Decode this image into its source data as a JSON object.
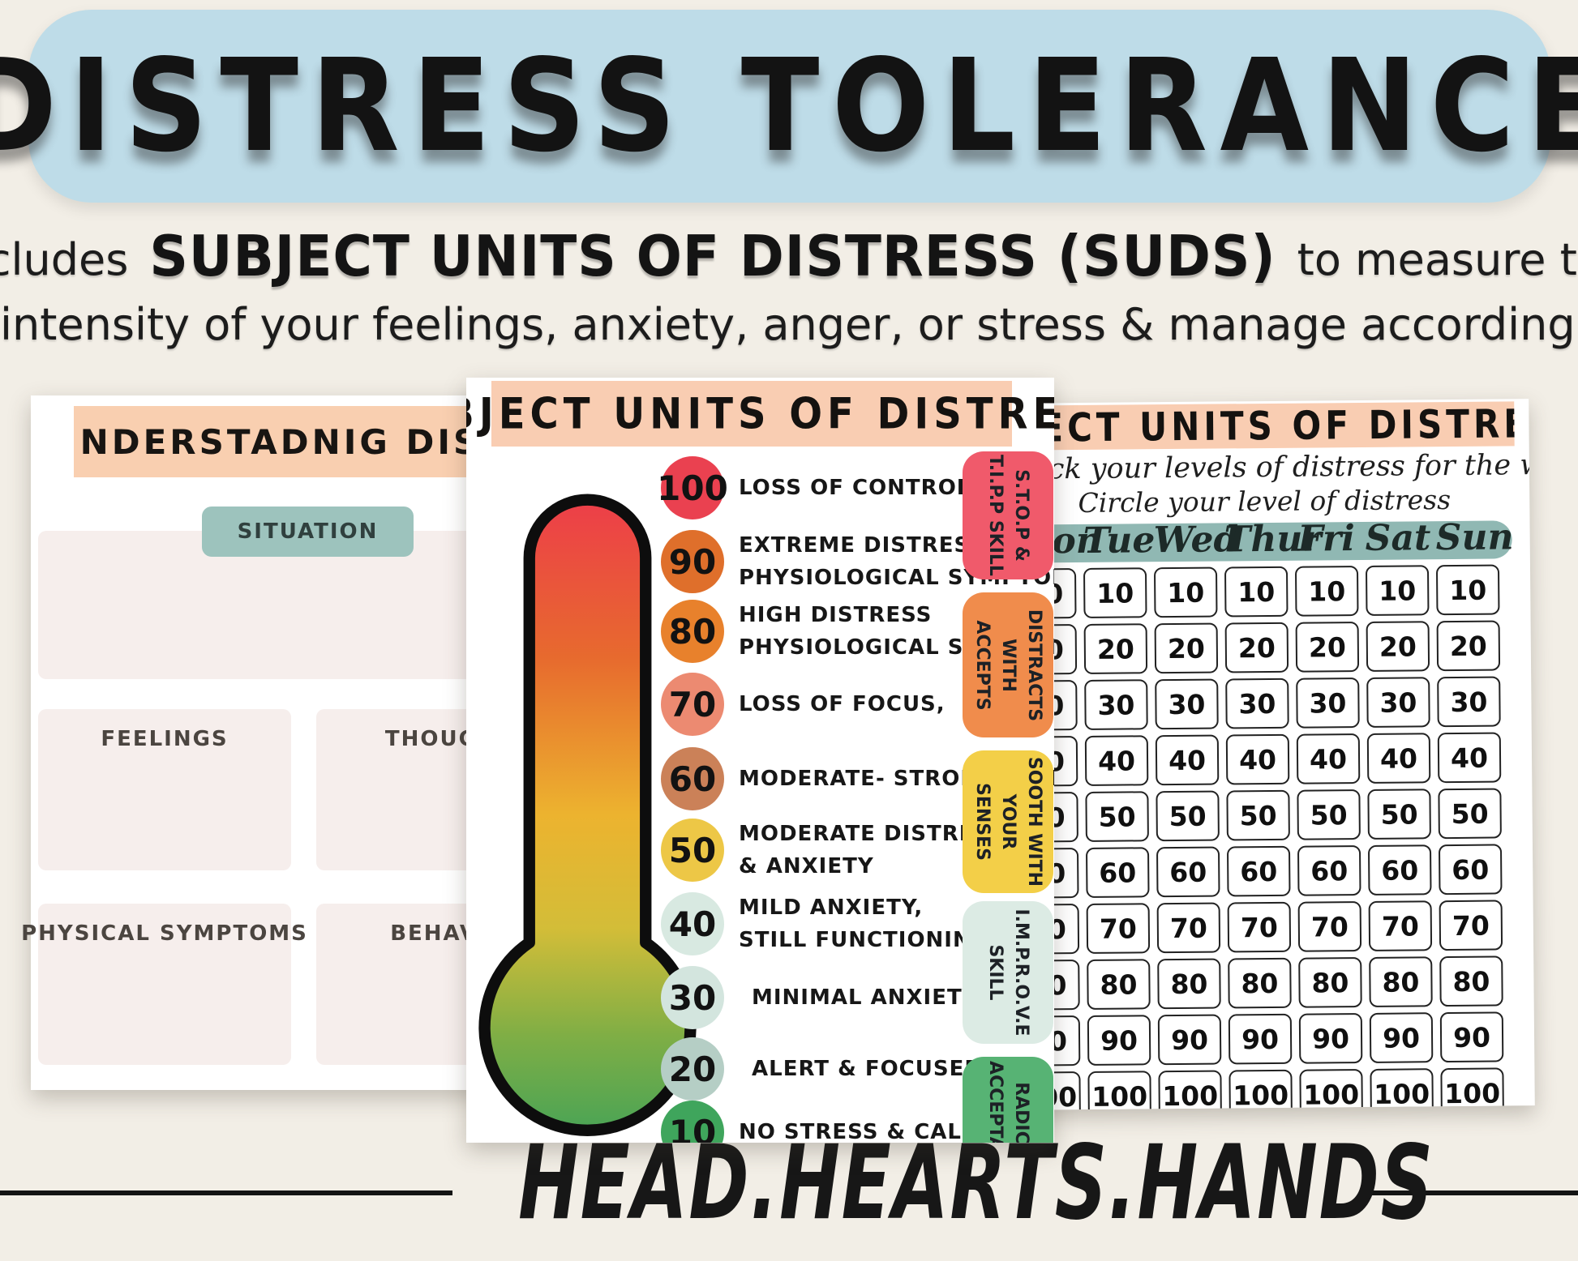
{
  "page": {
    "title": "DISTRESS TOLERANCE",
    "subtitle_prefix": "Includes",
    "subtitle_emphasis": "SUBJECT UNITS OF DISTRESS (SUDS)",
    "subtitle_suffix": "to measure the",
    "subtitle_line2": "intensity of your feelings, anxiety, anger, or stress & manage accordingly.",
    "footer": "HEAD.HEARTS.HANDS"
  },
  "colors": {
    "background": "#f2eee6",
    "banner_blue": "#bedce8",
    "peach_band": "#f9cdb2",
    "teal_button": "#9dc3bd",
    "teal_pill": "#90b8b3",
    "worksheet_box": "#f6eeec",
    "text_black": "#161616"
  },
  "left_sheet": {
    "title": "UNDERSTADNIG DISTRESS",
    "situation_label": "SITUATION",
    "box_labels": [
      "FEELINGS",
      "THOUGHTS",
      "PHYSICAL SYMPTOMS",
      "BEHAVIOR"
    ]
  },
  "center_sheet": {
    "title": "SUBJECT UNITS OF DISTRESS",
    "scale": [
      {
        "value": "100",
        "label": "LOSS OF CONTROL",
        "color": "#ea4150"
      },
      {
        "value": "90",
        "label": "EXTREME DISTRESS,\nPHYSIOLOGICAL SYMPTOMS",
        "color": "#df6f2b"
      },
      {
        "value": "80",
        "label": "HIGH DISTRESS\nPHYSIOLOGICAL SYMPTOMS",
        "color": "#e8812c"
      },
      {
        "value": "70",
        "label": "LOSS OF FOCUS,",
        "color": "#ec8a71"
      },
      {
        "value": "60",
        "label": "MODERATE- STRONG DISTRESS",
        "color": "#cb8158"
      },
      {
        "value": "50",
        "label": "MODERATE DISTRESS\n& ANXIETY",
        "color": "#edc746"
      },
      {
        "value": "40",
        "label": "MILD ANXIETY,\nSTILL FUNCTIONING",
        "color": "#d8e9e1"
      },
      {
        "value": "30",
        "label": "MINIMAL ANXIETY",
        "color": "#d3e5de"
      },
      {
        "value": "20",
        "label": "ALERT & FOCUSED",
        "color": "#b5cec5"
      },
      {
        "value": "10",
        "label": "NO STRESS & CALM",
        "color": "#3fa55c"
      }
    ],
    "tabs": [
      {
        "label": "S.T.O.P &\nT.I.P.P SKILL",
        "color": "#f05a6b"
      },
      {
        "label": "DISTRACTS WITH\nACCEPTS",
        "color": "#f08c4c"
      },
      {
        "label": "SOOTH WITH\nYOUR SENSES",
        "color": "#f3cf48"
      },
      {
        "label": "I.M.P.R.O.V.E\nSKILL",
        "color": "#dcebe4"
      },
      {
        "label": "RADICAL\nACCEPTANCE",
        "color": "#57b374"
      }
    ]
  },
  "right_sheet": {
    "title": "SUBJECT UNITS OF DISTRESS",
    "instruction_line1": "Track your levels of distress for the week,",
    "instruction_line2": "Circle your level of distress",
    "days": [
      "Mon",
      "Tue",
      "Wed",
      "Thur",
      "Fri",
      "Sat",
      "Sun"
    ],
    "levels": [
      "10",
      "20",
      "30",
      "40",
      "50",
      "60",
      "70",
      "80",
      "90",
      "100"
    ]
  }
}
